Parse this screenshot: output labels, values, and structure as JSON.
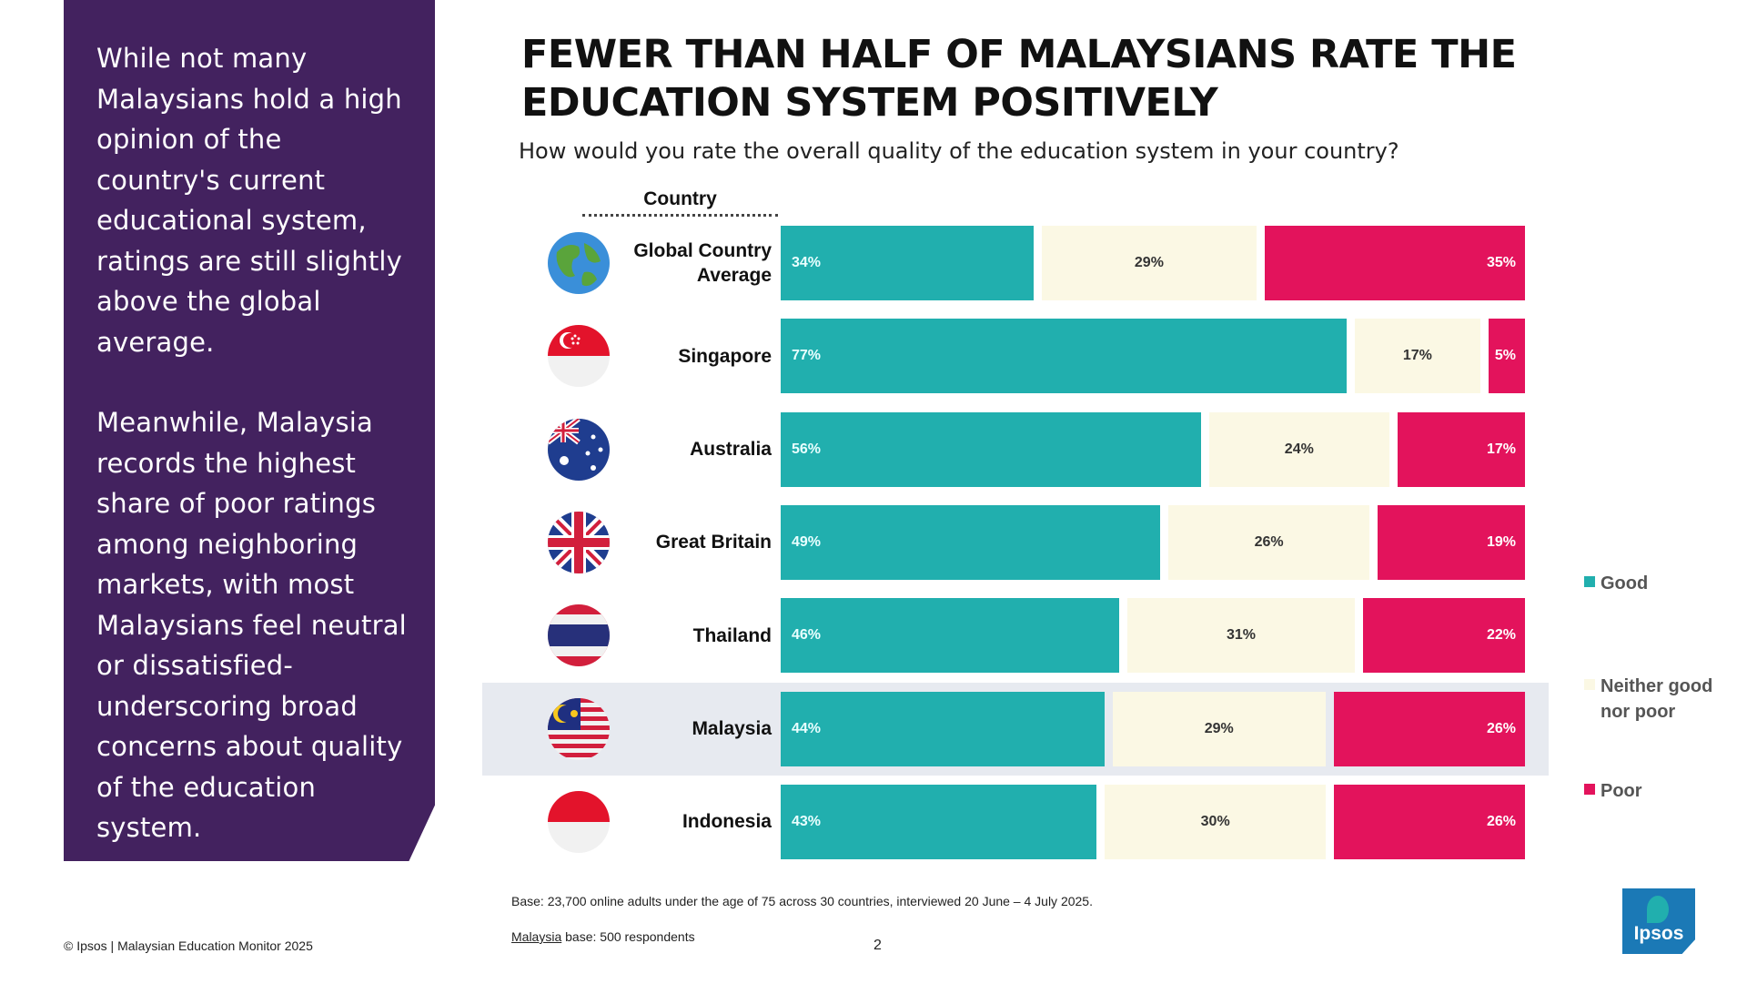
{
  "sidebar": {
    "paragraph1": "While not many Malaysians hold a high opinion of the country's current educational system, ratings are still slightly above the global average.",
    "paragraph2": "Meanwhile, Malaysia records the highest share of poor ratings among neighboring markets, with most Malaysians feel neutral or dissatisfied- underscoring broad concerns about quality of the education system."
  },
  "footer": {
    "base_note": "Base: 23,700 online adults under the age of 75 across 30 countries, interviewed 20 June – 4 July 2025.",
    "malaysia_base_label": "Malaysia",
    "malaysia_base_rest": " base: 500 respondents",
    "copyright": "© Ipsos | Malaysian Education Monitor 2025",
    "page_number": "2"
  },
  "logo": {
    "text": "Ipsos",
    "color": "#1b79b6"
  },
  "colors": {
    "good": "#21afae",
    "neither": "#fbf8e4",
    "poor": "#e3135c",
    "sidebar": "#43225f",
    "highlight": "#e7eaf0"
  },
  "chart_data": {
    "type": "bar",
    "orientation": "horizontal",
    "stacked": true,
    "title": "FEWER THAN HALF OF MALAYSIANS RATE THE EDUCATION SYSTEM POSITIVELY",
    "subtitle": "How would you rate the overall quality of the education system in your country?",
    "column_header": "Country",
    "categories": [
      "Global Country Average",
      "Singapore",
      "Australia",
      "Great Britain",
      "Thailand",
      "Malaysia",
      "Indonesia"
    ],
    "category_lines": [
      [
        "Global Country",
        "Average"
      ],
      [
        "Singapore"
      ],
      [
        "Australia"
      ],
      [
        "Great Britain"
      ],
      [
        "Thailand"
      ],
      [
        "Malaysia"
      ],
      [
        "Indonesia"
      ]
    ],
    "flag_icons": [
      "globe-icon",
      "singapore-flag-icon",
      "australia-flag-icon",
      "great-britain-flag-icon",
      "thailand-flag-icon",
      "malaysia-flag-icon",
      "indonesia-flag-icon"
    ],
    "highlighted_category": "Malaysia",
    "series": [
      {
        "name": "Good",
        "values": [
          34,
          77,
          56,
          49,
          46,
          44,
          43
        ],
        "color": "#21afae"
      },
      {
        "name": "Neither good nor poor",
        "values": [
          29,
          17,
          24,
          26,
          31,
          29,
          30
        ],
        "color": "#fbf8e4"
      },
      {
        "name": "Poor",
        "values": [
          35,
          5,
          17,
          19,
          22,
          26,
          26
        ],
        "color": "#e3135c"
      }
    ],
    "value_suffix": "%",
    "legend_position": "right",
    "legend": [
      [
        "Good"
      ],
      [
        "Neither good",
        "nor poor"
      ],
      [
        "Poor"
      ]
    ]
  }
}
